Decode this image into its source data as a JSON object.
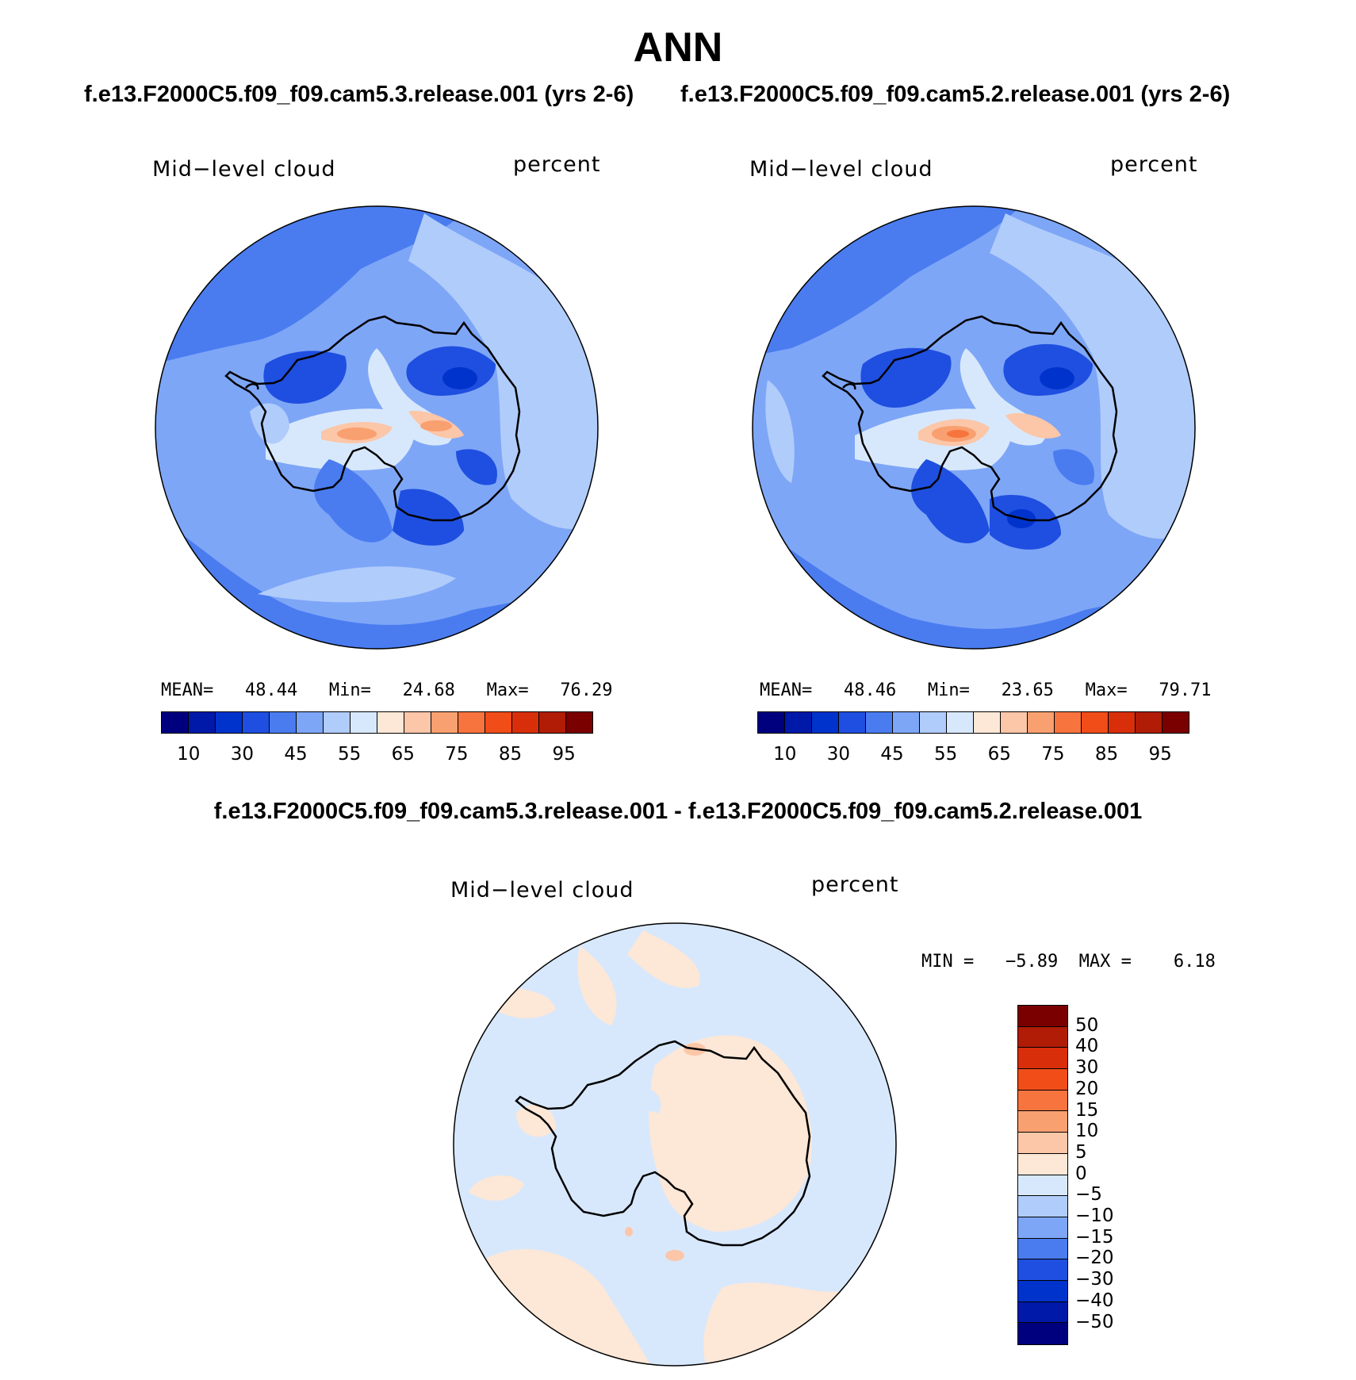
{
  "figure": {
    "season": "ANN",
    "case1_title": "f.e13.F2000C5.f09_f09.cam5.3.release.001 (yrs 2-6)",
    "case2_title": "f.e13.F2000C5.f09_f09.cam5.2.release.001 (yrs 2-6)",
    "diff_title": "f.e13.F2000C5.f09_f09.cam5.3.release.001 - f.e13.F2000C5.f09_f09.cam5.2.release.001"
  },
  "panels": {
    "p1": {
      "variable": "Mid−level cloud",
      "units": "percent",
      "stats": "MEAN=   48.44   Min=   24.68   Max=   76.29"
    },
    "p2": {
      "variable": "Mid−level cloud",
      "units": "percent",
      "stats": "MEAN=   48.46   Min=   23.65   Max=   79.71"
    },
    "p3": {
      "variable": "Mid−level cloud",
      "units": "percent",
      "stats": "MIN =   −5.89  MAX =    6.18"
    }
  },
  "colorbars": {
    "abs_colors": [
      "#00007f",
      "#0019a8",
      "#0033cc",
      "#1f4fe0",
      "#4a7cf0",
      "#7ea6f7",
      "#b0ccfb",
      "#d8e8fc",
      "#fde7d6",
      "#fcc6a8",
      "#f9a070",
      "#f8743e",
      "#f14d19",
      "#d82f0a",
      "#b01c06",
      "#7a0000"
    ],
    "abs_ticks": [
      "10",
      "30",
      "45",
      "55",
      "65",
      "75",
      "85",
      "95"
    ],
    "diff_colors": [
      "#7a0000",
      "#b01c06",
      "#d82f0a",
      "#f14d19",
      "#f8743e",
      "#f9a070",
      "#fcc6a8",
      "#fde7d6",
      "#d8e8fc",
      "#b0ccfb",
      "#7ea6f7",
      "#4a7cf0",
      "#1f4fe0",
      "#0033cc",
      "#0019a8",
      "#00007f"
    ],
    "diff_ticks": [
      "50",
      "40",
      "30",
      "20",
      "15",
      "10",
      "5",
      "0",
      "−5",
      "−10",
      "−15",
      "−20",
      "−30",
      "−40",
      "−50"
    ]
  },
  "chart_data": [
    {
      "type": "heatmap",
      "title": "Mid−level cloud",
      "units": "percent",
      "projection": "polar stereographic (south pole)",
      "mean": 48.44,
      "min": 24.68,
      "max": 76.29,
      "levels": [
        5,
        10,
        20,
        30,
        40,
        45,
        50,
        55,
        60,
        65,
        70,
        75,
        80,
        85,
        90,
        95
      ]
    },
    {
      "type": "heatmap",
      "title": "Mid−level cloud",
      "units": "percent",
      "projection": "polar stereographic (south pole)",
      "mean": 48.46,
      "min": 23.65,
      "max": 79.71,
      "levels": [
        5,
        10,
        20,
        30,
        40,
        45,
        50,
        55,
        60,
        65,
        70,
        75,
        80,
        85,
        90,
        95
      ]
    },
    {
      "type": "heatmap",
      "title": "Mid−level cloud",
      "units": "percent",
      "projection": "polar stereographic (south pole)",
      "min": -5.89,
      "max": 6.18,
      "levels": [
        -50,
        -40,
        -30,
        -20,
        -15,
        -10,
        -5,
        0,
        5,
        10,
        15,
        20,
        30,
        40,
        50
      ]
    }
  ]
}
